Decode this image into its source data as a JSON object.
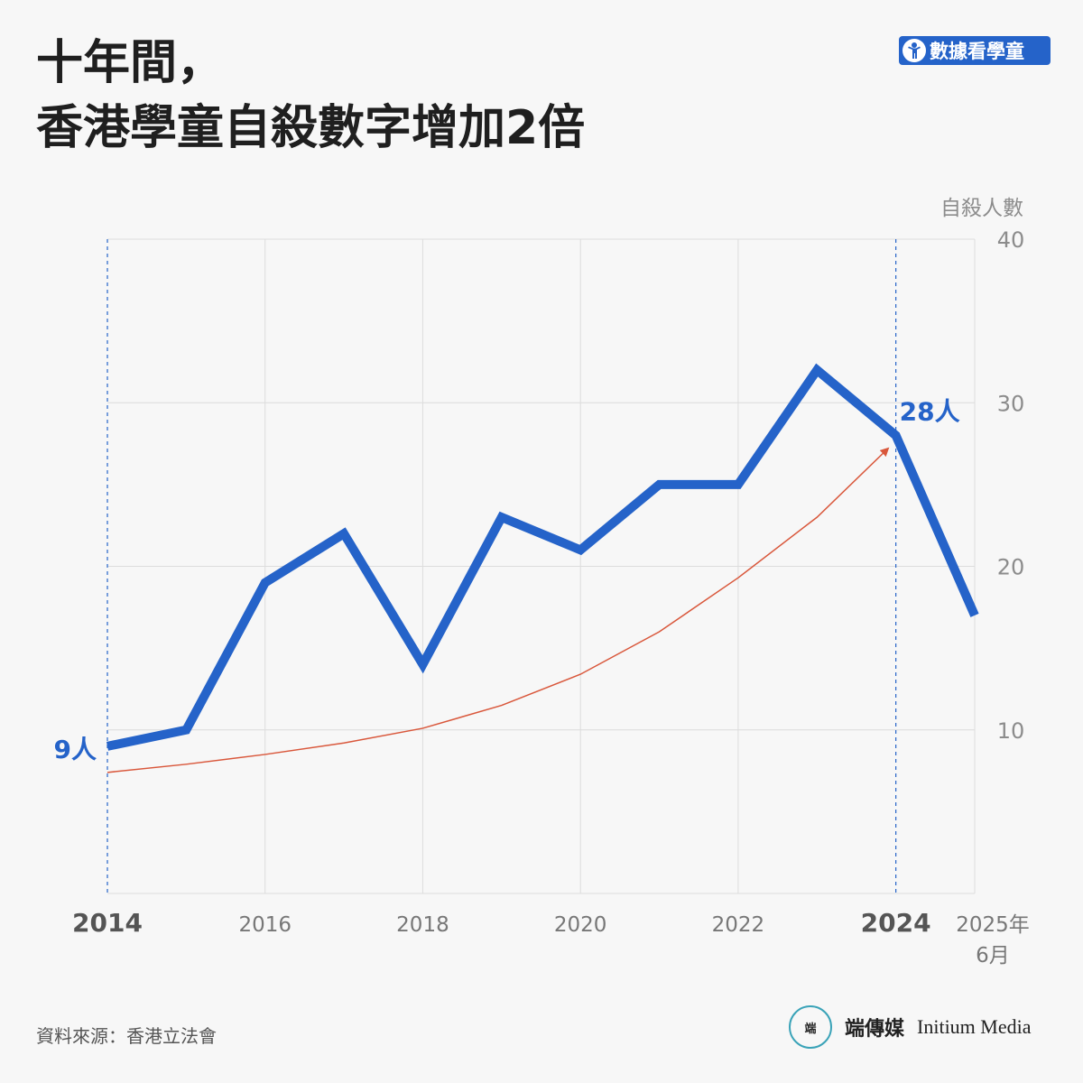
{
  "title": {
    "line1": "十年間，",
    "line2": "香港學童自殺數字增加2倍"
  },
  "badge": {
    "label": "數據看學童",
    "icon": "child-figure-icon"
  },
  "source": "資料來源：香港立法會",
  "brand": {
    "chinese": "端傳媒",
    "english": "Initium Media",
    "logo_icon": "initium-logo-icon",
    "logo_text": "端"
  },
  "colors": {
    "series": "#2563c9",
    "trend": "#d9573b",
    "grid": "#dcdcdc",
    "axis_text": "#8c8c8c"
  },
  "chart_data": {
    "type": "line",
    "ylabel": "自殺人數",
    "ylim": [
      0,
      40
    ],
    "yticks": [
      "10",
      "20",
      "30",
      "40"
    ],
    "xlim": [
      2014,
      2025
    ],
    "xticks": [
      {
        "x": 2014,
        "label": "2014",
        "bold": true
      },
      {
        "x": 2016,
        "label": "2016",
        "bold": false
      },
      {
        "x": 2018,
        "label": "2018",
        "bold": false
      },
      {
        "x": 2020,
        "label": "2020",
        "bold": false
      },
      {
        "x": 2022,
        "label": "2022",
        "bold": false
      },
      {
        "x": 2024,
        "label": "2024",
        "bold": true
      },
      {
        "x": 2025,
        "label": "2025年\n6月",
        "bold": false
      }
    ],
    "series": [
      {
        "x": [
          2014,
          2015,
          2016,
          2017,
          2018,
          2019,
          2020,
          2021,
          2022,
          2023,
          2024,
          2025
        ],
        "values": [
          9,
          10,
          19,
          22,
          14,
          23,
          21,
          25,
          25,
          32,
          28,
          17
        ]
      }
    ],
    "trend": {
      "x": [
        2014,
        2015,
        2016,
        2017,
        2018,
        2019,
        2020,
        2021,
        2022,
        2023,
        2023.9
      ],
      "values": [
        7.4,
        7.9,
        8.5,
        9.2,
        10.1,
        11.5,
        13.4,
        16.0,
        19.3,
        23.0,
        27.2
      ]
    },
    "reference_lines": [
      2014,
      2024
    ],
    "annotations": [
      {
        "x": 2014,
        "y": 9,
        "text": "9人"
      },
      {
        "x": 2024,
        "y": 28,
        "text": "28人"
      }
    ],
    "grid": true
  }
}
